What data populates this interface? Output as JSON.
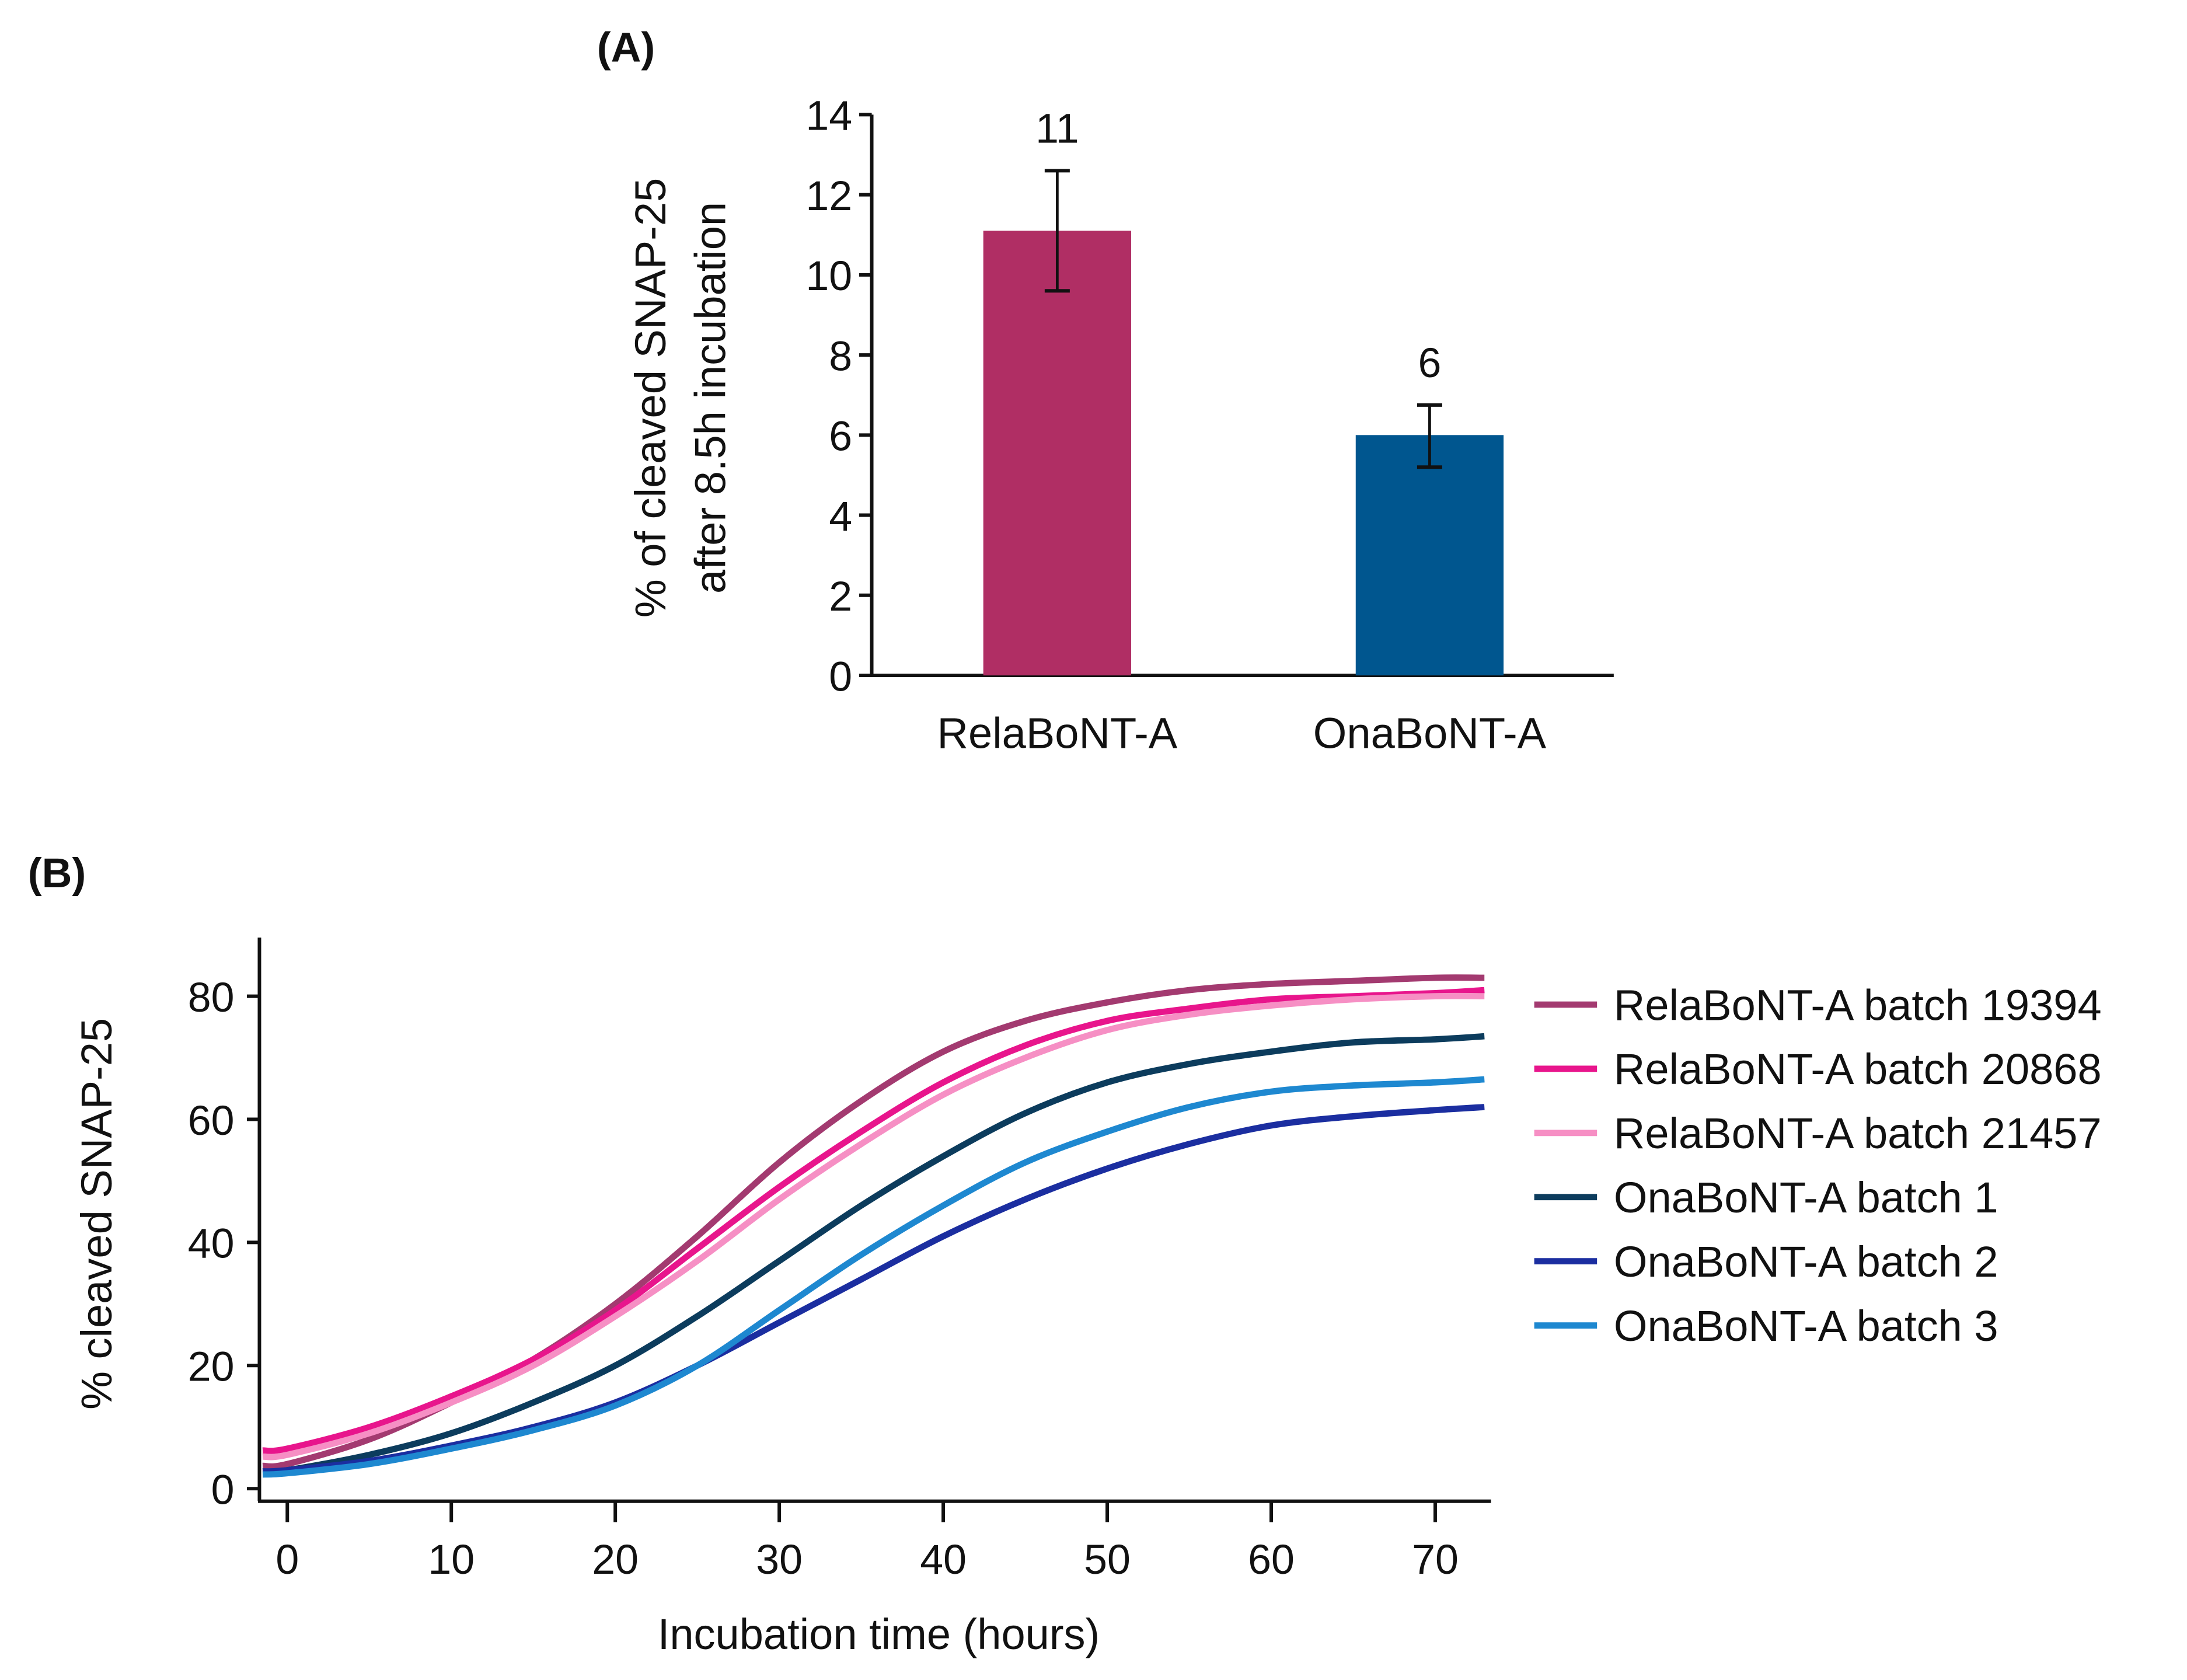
{
  "chart_data": [
    {
      "panel": "(A)",
      "type": "bar",
      "categories": [
        "RelaBoNT-A",
        "OnaBoNT-A"
      ],
      "values": [
        11.1,
        6.0
      ],
      "data_labels": [
        "11",
        "6"
      ],
      "error_low": [
        9.6,
        5.2
      ],
      "error_high": [
        12.6,
        6.75
      ],
      "colors": [
        "#b02e64",
        "#00568f"
      ],
      "xlabel": "",
      "ylabel_lines": [
        "% of cleaved SNAP-25",
        "after 8.5h incubation"
      ],
      "ylim": [
        0,
        14
      ],
      "yticks": [
        0,
        2,
        4,
        6,
        8,
        10,
        12,
        14
      ],
      "grid": false
    },
    {
      "panel": "(B)",
      "type": "line",
      "xlabel": "Incubation time (hours)",
      "ylabel": "% cleaved SNAP-25",
      "xlim": [
        -1.7,
        73.4
      ],
      "ylim": [
        -2,
        89
      ],
      "xticks": [
        0,
        10,
        20,
        30,
        40,
        50,
        60,
        70
      ],
      "yticks": [
        0,
        20,
        40,
        60,
        80
      ],
      "legend_position": "right",
      "grid": false,
      "x": [
        -1.5,
        0,
        5,
        10,
        15,
        20,
        25,
        30,
        35,
        40,
        45,
        50,
        55,
        60,
        65,
        70,
        73
      ],
      "series": [
        {
          "name": "RelaBoNT-A batch 19394",
          "color": "#a33a70",
          "values": [
            3.7,
            4,
            8,
            14,
            21,
            30,
            41,
            53,
            63,
            71,
            76,
            79,
            81,
            82,
            82.5,
            83,
            83
          ]
        },
        {
          "name": "RelaBoNT-A batch 20868",
          "color": "#e8158c",
          "values": [
            6.2,
            6.5,
            10,
            15,
            21,
            29,
            39,
            49,
            58,
            66,
            72,
            76,
            78,
            79.5,
            80,
            80.5,
            81
          ]
        },
        {
          "name": "RelaBoNT-A batch 21457",
          "color": "#f68fc4",
          "values": [
            5.2,
            5.5,
            9,
            14,
            20,
            28,
            37,
            47,
            56,
            64,
            70,
            74.5,
            77,
            78.5,
            79.5,
            80,
            80
          ]
        },
        {
          "name": "OnaBoNT-A batch 1",
          "color": "#0c3c5d",
          "values": [
            2.8,
            3,
            5.5,
            9,
            14,
            20,
            28,
            37,
            46,
            54,
            61,
            66,
            69,
            71,
            72.5,
            73,
            73.5
          ]
        },
        {
          "name": "OnaBoNT-A batch 2",
          "color": "#1b2ea0",
          "values": [
            2.8,
            3,
            4.5,
            7,
            10,
            14,
            20,
            27,
            34,
            41,
            47,
            52,
            56,
            59,
            60.5,
            61.5,
            62
          ]
        },
        {
          "name": "OnaBoNT-A batch 3",
          "color": "#1e88d0",
          "values": [
            2.3,
            2.5,
            4,
            6.5,
            9.5,
            13.5,
            20,
            29,
            38,
            46,
            53,
            58,
            62,
            64.5,
            65.5,
            66,
            66.5
          ]
        }
      ]
    }
  ]
}
